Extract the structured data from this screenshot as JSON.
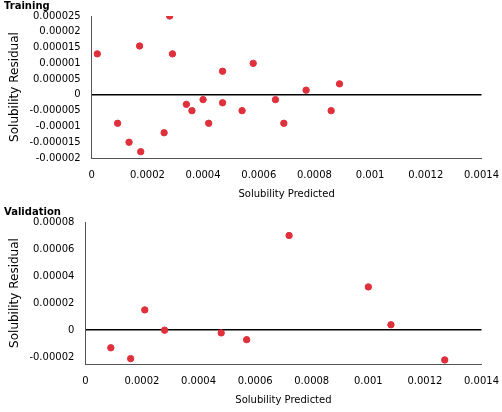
{
  "chart_data": [
    {
      "type": "scatter",
      "title": "Training",
      "x_label": "Solubility Predicted",
      "y_label": "Solubility Residual",
      "x": [
        2e-05,
        9.3e-05,
        0.000134,
        0.000172,
        0.000176,
        0.00026,
        0.00028,
        0.00029,
        0.00034,
        0.00036,
        0.0004,
        0.00042,
        0.00047,
        0.00047,
        0.00054,
        0.00058,
        0.00066,
        0.00069,
        0.00077,
        0.00086,
        0.00089
      ],
      "values": [
        1.3e-05,
        -9e-06,
        -1.5e-05,
        1.55e-05,
        -1.8e-05,
        -1.2e-05,
        2.5e-05,
        1.3e-05,
        -3e-06,
        -5e-06,
        -1.5e-06,
        -9e-06,
        7.5e-06,
        -2.5e-06,
        -5e-06,
        1e-05,
        -1.5e-06,
        -9e-06,
        1.5e-06,
        -5e-06,
        3.5e-06
      ],
      "color": "#e0303c",
      "marker": "circle",
      "grid": false,
      "xlim": [
        0,
        0.0014
      ],
      "xticks": [
        0,
        0.0002,
        0.0004,
        0.0006,
        0.0008,
        0.001,
        0.0012,
        0.0014
      ],
      "ylim": [
        -2e-05,
        2.5e-05
      ],
      "yticks": [
        -2e-05,
        -1.5e-05,
        -1e-05,
        -5e-06,
        0,
        5e-06,
        1e-05,
        1.5e-05,
        2e-05,
        2.5e-05
      ]
    },
    {
      "type": "scatter",
      "title": "Validation",
      "x_label": "Solubility Predicted",
      "y_label": "Solubility Residual",
      "x": [
        9e-05,
        0.00016,
        0.00021,
        0.00028,
        0.00048,
        0.00057,
        0.00072,
        0.001,
        0.00108,
        0.00127
      ],
      "values": [
        -1.3e-05,
        -2.1e-05,
        1.5e-05,
        0,
        -2e-06,
        -7e-06,
        7e-05,
        3.2e-05,
        4e-06,
        -2.2e-05
      ],
      "color": "#e0303c",
      "marker": "circle",
      "grid": false,
      "xlim": [
        0,
        0.0014
      ],
      "xticks": [
        0,
        0.0002,
        0.0004,
        0.0006,
        0.0008,
        0.001,
        0.0012,
        0.0014
      ],
      "ylim": [
        -2.5e-05,
        8e-05
      ],
      "yticks": [
        -2e-05,
        0,
        2e-05,
        4e-05,
        6e-05,
        8e-05
      ]
    }
  ]
}
